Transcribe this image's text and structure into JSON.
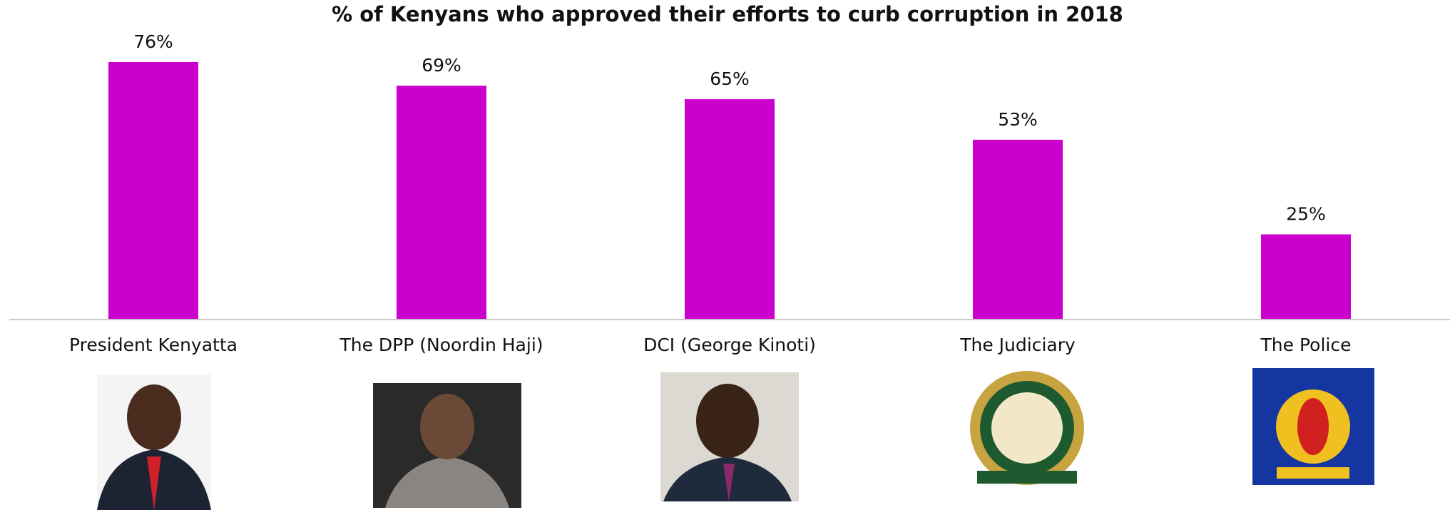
{
  "chart_data": {
    "type": "bar",
    "title": "% of Kenyans who approved their efforts to curb corruption in 2018",
    "categories": [
      "President Kenyatta",
      "The DPP (Noordin Haji)",
      "DCI (George Kinoti)",
      "The Judiciary",
      "The Police"
    ],
    "values": [
      76,
      69,
      65,
      53,
      25
    ],
    "value_labels": [
      "76%",
      "69%",
      "65%",
      "53%",
      "25%"
    ],
    "color": "#cc00cc",
    "ylim": [
      0,
      80
    ]
  }
}
